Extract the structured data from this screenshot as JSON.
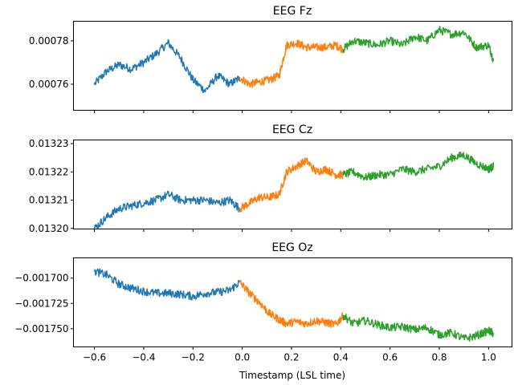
{
  "chart_data": {
    "type": "line",
    "xlabel": "Timestamp (LSL time)",
    "xlim": [
      -0.685,
      1.095
    ],
    "xticks": [
      -0.6,
      -0.4,
      -0.2,
      0.0,
      0.2,
      0.4,
      0.6,
      0.8,
      1.0
    ],
    "xtick_labels": [
      "−0.6",
      "−0.4",
      "−0.2",
      "0.0",
      "0.2",
      "0.4",
      "0.6",
      "0.8",
      "1.0"
    ],
    "series_colors": [
      "#1f77b4",
      "#ff7f0e",
      "#2ca02c"
    ],
    "panels": [
      {
        "title": "EEG Fz",
        "ylim": [
          0.000748,
          0.000789
        ],
        "yticks": [
          0.00076,
          0.00078
        ],
        "ytick_labels": [
          "0.00076",
          "0.00078"
        ],
        "series": [
          {
            "x": [
              -0.6,
              -0.55,
              -0.5,
              -0.45,
              -0.4,
              -0.35,
              -0.3,
              -0.25,
              -0.2,
              -0.15,
              -0.1,
              -0.05,
              -0.01
            ],
            "y": [
              0.00076,
              0.000766,
              0.000769,
              0.000767,
              0.00077,
              0.000774,
              0.000779,
              0.000772,
              0.000762,
              0.000757,
              0.000764,
              0.00076,
              0.000763
            ]
          },
          {
            "x": [
              -0.01,
              0.03,
              0.07,
              0.11,
              0.15,
              0.18,
              0.22,
              0.26,
              0.3,
              0.34,
              0.38,
              0.41
            ],
            "y": [
              0.000763,
              0.00076,
              0.000761,
              0.000762,
              0.000764,
              0.000778,
              0.000779,
              0.000777,
              0.000777,
              0.000777,
              0.000778,
              0.000776
            ]
          },
          {
            "x": [
              0.41,
              0.45,
              0.5,
              0.55,
              0.6,
              0.65,
              0.7,
              0.75,
              0.8,
              0.85,
              0.9,
              0.95,
              1.0,
              1.02
            ],
            "y": [
              0.000776,
              0.00078,
              0.000779,
              0.000778,
              0.00078,
              0.000778,
              0.000782,
              0.00078,
              0.000785,
              0.000783,
              0.000784,
              0.000777,
              0.000778,
              0.000771
            ]
          }
        ]
      },
      {
        "title": "EEG Cz",
        "ylim": [
          0.0131998,
          0.0132313
        ],
        "yticks": [
          0.0132,
          0.01321,
          0.01322,
          0.01323
        ],
        "ytick_labels": [
          "0.01320",
          "0.01321",
          "0.01322",
          "0.01323"
        ],
        "series": [
          {
            "x": [
              -0.6,
              -0.55,
              -0.5,
              -0.45,
              -0.4,
              -0.35,
              -0.3,
              -0.25,
              -0.2,
              -0.15,
              -0.1,
              -0.05,
              -0.01
            ],
            "y": [
              0.0132,
              0.013204,
              0.013207,
              0.013208,
              0.013209,
              0.01321,
              0.013212,
              0.01321,
              0.01321,
              0.01321,
              0.013209,
              0.01321,
              0.013207
            ]
          },
          {
            "x": [
              -0.01,
              0.03,
              0.07,
              0.11,
              0.15,
              0.18,
              0.22,
              0.26,
              0.3,
              0.34,
              0.38,
              0.41
            ],
            "y": [
              0.013207,
              0.013209,
              0.013211,
              0.013211,
              0.013212,
              0.01322,
              0.013222,
              0.013224,
              0.01322,
              0.013221,
              0.013219,
              0.013219
            ]
          },
          {
            "x": [
              0.41,
              0.45,
              0.5,
              0.55,
              0.6,
              0.65,
              0.7,
              0.75,
              0.8,
              0.85,
              0.9,
              0.95,
              1.0,
              1.02
            ],
            "y": [
              0.013219,
              0.01322,
              0.013218,
              0.013219,
              0.013219,
              0.013221,
              0.01322,
              0.013221,
              0.013222,
              0.013225,
              0.013226,
              0.013223,
              0.013221,
              0.013222
            ]
          }
        ]
      },
      {
        "title": "EEG Oz",
        "ylim": [
          -0.001768,
          -0.00168
        ],
        "yticks": [
          -0.0017,
          -0.001725,
          -0.00175
        ],
        "ytick_labels": [
          "−0.001700",
          "−0.001725",
          "−0.001750"
        ],
        "series": [
          {
            "x": [
              -0.6,
              -0.55,
              -0.5,
              -0.45,
              -0.4,
              -0.35,
              -0.3,
              -0.25,
              -0.2,
              -0.15,
              -0.1,
              -0.05,
              -0.01
            ],
            "y": [
              -0.001693,
              -0.001697,
              -0.001706,
              -0.00171,
              -0.001713,
              -0.001715,
              -0.001715,
              -0.001716,
              -0.001718,
              -0.001715,
              -0.001714,
              -0.001712,
              -0.001704
            ]
          },
          {
            "x": [
              -0.01,
              0.03,
              0.07,
              0.11,
              0.15,
              0.18,
              0.22,
              0.26,
              0.3,
              0.34,
              0.38,
              0.41
            ],
            "y": [
              -0.001704,
              -0.001715,
              -0.001724,
              -0.001735,
              -0.001741,
              -0.001745,
              -0.001743,
              -0.001745,
              -0.001742,
              -0.001744,
              -0.001746,
              -0.001737
            ]
          },
          {
            "x": [
              0.41,
              0.45,
              0.5,
              0.55,
              0.6,
              0.65,
              0.7,
              0.75,
              0.8,
              0.85,
              0.9,
              0.95,
              1.0,
              1.02
            ],
            "y": [
              -0.001737,
              -0.001745,
              -0.001742,
              -0.001746,
              -0.001749,
              -0.001748,
              -0.001751,
              -0.001749,
              -0.001756,
              -0.001754,
              -0.00176,
              -0.001757,
              -0.001752,
              -0.001755
            ]
          }
        ]
      }
    ]
  }
}
